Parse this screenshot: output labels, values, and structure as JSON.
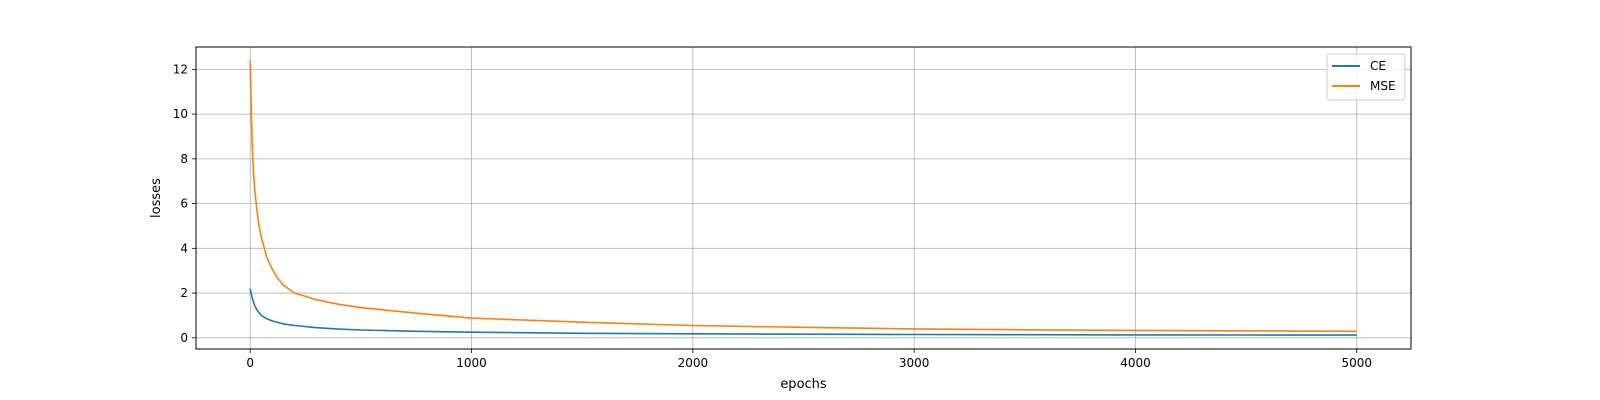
{
  "chart_data": {
    "type": "line",
    "title": "",
    "xlabel": "epochs",
    "ylabel": "losses",
    "xlim": [
      -245,
      5245
    ],
    "ylim": [
      -0.5,
      13.0
    ],
    "xticks": [
      0,
      1000,
      2000,
      3000,
      4000,
      5000
    ],
    "yticks": [
      0,
      2,
      4,
      6,
      8,
      10,
      12
    ],
    "grid": true,
    "legend_position": "top-right",
    "series": [
      {
        "name": "CE",
        "color": "#1f77b4",
        "x": [
          0,
          5,
          10,
          20,
          30,
          50,
          75,
          100,
          150,
          200,
          300,
          400,
          500,
          750,
          1000,
          1500,
          2000,
          2500,
          3000,
          3500,
          4000,
          4500,
          5000
        ],
        "y": [
          2.2,
          1.95,
          1.75,
          1.45,
          1.25,
          1.0,
          0.85,
          0.75,
          0.62,
          0.55,
          0.45,
          0.39,
          0.35,
          0.29,
          0.25,
          0.2,
          0.18,
          0.16,
          0.15,
          0.14,
          0.13,
          0.125,
          0.12
        ]
      },
      {
        "name": "MSE",
        "color": "#ff7f0e",
        "x": [
          0,
          5,
          10,
          15,
          20,
          30,
          40,
          50,
          75,
          100,
          125,
          150,
          200,
          250,
          300,
          400,
          500,
          750,
          1000,
          1500,
          2000,
          2500,
          3000,
          3500,
          4000,
          4500,
          5000
        ],
        "y": [
          12.4,
          10.0,
          8.4,
          7.4,
          6.7,
          5.7,
          5.0,
          4.5,
          3.6,
          3.05,
          2.65,
          2.35,
          2.0,
          1.85,
          1.7,
          1.5,
          1.35,
          1.1,
          0.88,
          0.7,
          0.55,
          0.47,
          0.4,
          0.36,
          0.33,
          0.31,
          0.29
        ]
      }
    ]
  }
}
